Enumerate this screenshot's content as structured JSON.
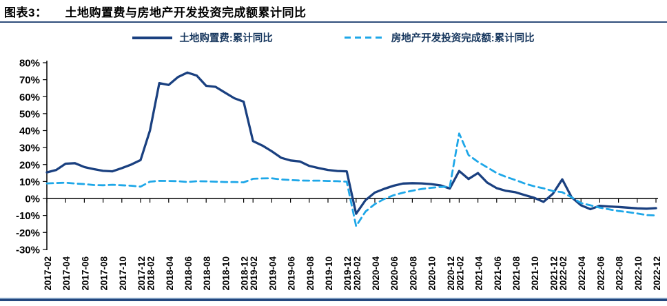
{
  "header": {
    "tag": "图表3：",
    "title": "土地购置费与房地产开发投资完成额累计同比"
  },
  "legend": {
    "items": [
      {
        "label": "土地购置费:累计同比",
        "style": "solid",
        "color": "#1a4080"
      },
      {
        "label": "房地产开发投资完成额:累计同比",
        "style": "dashed",
        "color": "#1ea7e8"
      }
    ]
  },
  "chart_data": {
    "type": "line",
    "title": "土地购置费与房地产开发投资完成额累计同比",
    "xlabel": "",
    "ylabel": "",
    "ylim": [
      -30,
      80
    ],
    "ytick_step": 10,
    "ytick_labels": [
      "80%",
      "70%",
      "60%",
      "50%",
      "40%",
      "30%",
      "20%",
      "10%",
      "0%",
      "-10%",
      "-20%",
      "-30%"
    ],
    "grid": false,
    "legend_position": "top",
    "x_tick_labels": [
      "2017-02",
      "2017-04",
      "2017-06",
      "2017-08",
      "2017-10",
      "2017-12",
      "2018-02",
      "2018-04",
      "2018-06",
      "2018-08",
      "2018-10",
      "2018-12",
      "2019-02",
      "2019-04",
      "2019-06",
      "2019-08",
      "2019-10",
      "2019-12",
      "2020-02",
      "2020-04",
      "2020-06",
      "2020-08",
      "2020-10",
      "2020-12",
      "2021-02",
      "2021-04",
      "2021-06",
      "2021-08",
      "2021-10",
      "2021-12",
      "2022-02",
      "2022-04",
      "2022-06",
      "2022-08",
      "2022-10",
      "2022-12"
    ],
    "x": [
      "2017-02",
      "2017-03",
      "2017-04",
      "2017-05",
      "2017-06",
      "2017-07",
      "2017-08",
      "2017-09",
      "2017-10",
      "2017-11",
      "2017-12",
      "2018-02",
      "2018-03",
      "2018-04",
      "2018-05",
      "2018-06",
      "2018-07",
      "2018-08",
      "2018-09",
      "2018-10",
      "2018-11",
      "2018-12",
      "2019-02",
      "2019-03",
      "2019-04",
      "2019-05",
      "2019-06",
      "2019-07",
      "2019-08",
      "2019-09",
      "2019-10",
      "2019-11",
      "2019-12",
      "2020-02",
      "2020-03",
      "2020-04",
      "2020-05",
      "2020-06",
      "2020-07",
      "2020-08",
      "2020-09",
      "2020-10",
      "2020-11",
      "2020-12",
      "2021-02",
      "2021-03",
      "2021-04",
      "2021-05",
      "2021-06",
      "2021-07",
      "2021-08",
      "2021-09",
      "2021-10",
      "2021-11",
      "2021-12",
      "2022-02",
      "2022-03",
      "2022-04",
      "2022-05",
      "2022-06",
      "2022-07",
      "2022-08",
      "2022-09",
      "2022-10",
      "2022-11",
      "2022-12"
    ],
    "series": [
      {
        "name": "土地购置费:累计同比",
        "style": "solid",
        "color": "#1a4080",
        "values": [
          15.4,
          16.8,
          20.5,
          20.8,
          18.5,
          17.3,
          16.3,
          16.0,
          17.9,
          20.0,
          22.6,
          40.0,
          68.0,
          66.9,
          71.6,
          74.2,
          72.4,
          66.4,
          65.8,
          62.4,
          59.1,
          57.0,
          33.8,
          31.2,
          27.8,
          24.0,
          22.4,
          21.8,
          19.2,
          17.9,
          16.8,
          16.2,
          16.0,
          -9.0,
          -1.0,
          3.5,
          5.7,
          7.5,
          8.8,
          9.0,
          8.9,
          8.5,
          7.7,
          5.9,
          16.2,
          11.5,
          15.0,
          9.3,
          6.1,
          4.5,
          3.7,
          2.0,
          0.4,
          -2.0,
          2.8,
          11.3,
          0.7,
          -4.0,
          -6.3,
          -4.3,
          -4.7,
          -5.0,
          -5.4,
          -5.8,
          -6.0,
          -5.7
        ]
      },
      {
        "name": "房地产开发投资完成额:累计同比",
        "style": "dashed",
        "color": "#1ea7e8",
        "values": [
          8.9,
          9.1,
          9.3,
          8.8,
          8.5,
          7.9,
          7.8,
          8.1,
          7.8,
          7.5,
          7.0,
          9.9,
          10.4,
          10.3,
          10.2,
          9.7,
          10.2,
          10.1,
          9.9,
          9.7,
          9.7,
          9.5,
          11.6,
          11.8,
          11.9,
          11.2,
          10.9,
          10.6,
          10.5,
          10.5,
          10.3,
          10.2,
          9.9,
          -16.3,
          -7.7,
          -3.3,
          -0.3,
          1.9,
          3.4,
          4.6,
          5.6,
          6.3,
          6.8,
          7.0,
          38.3,
          25.6,
          21.6,
          18.3,
          15.0,
          12.7,
          10.9,
          8.8,
          7.2,
          6.0,
          4.4,
          3.7,
          0.7,
          -2.7,
          -4.0,
          -5.4,
          -6.4,
          -7.4,
          -8.0,
          -8.8,
          -9.8,
          -10.0
        ]
      }
    ]
  },
  "colors": {
    "title_underline": "#2e4d7b",
    "axis": "#000000",
    "bottom_rule_light": "#7d9cc0",
    "bottom_rule_dark": "#24477e"
  }
}
